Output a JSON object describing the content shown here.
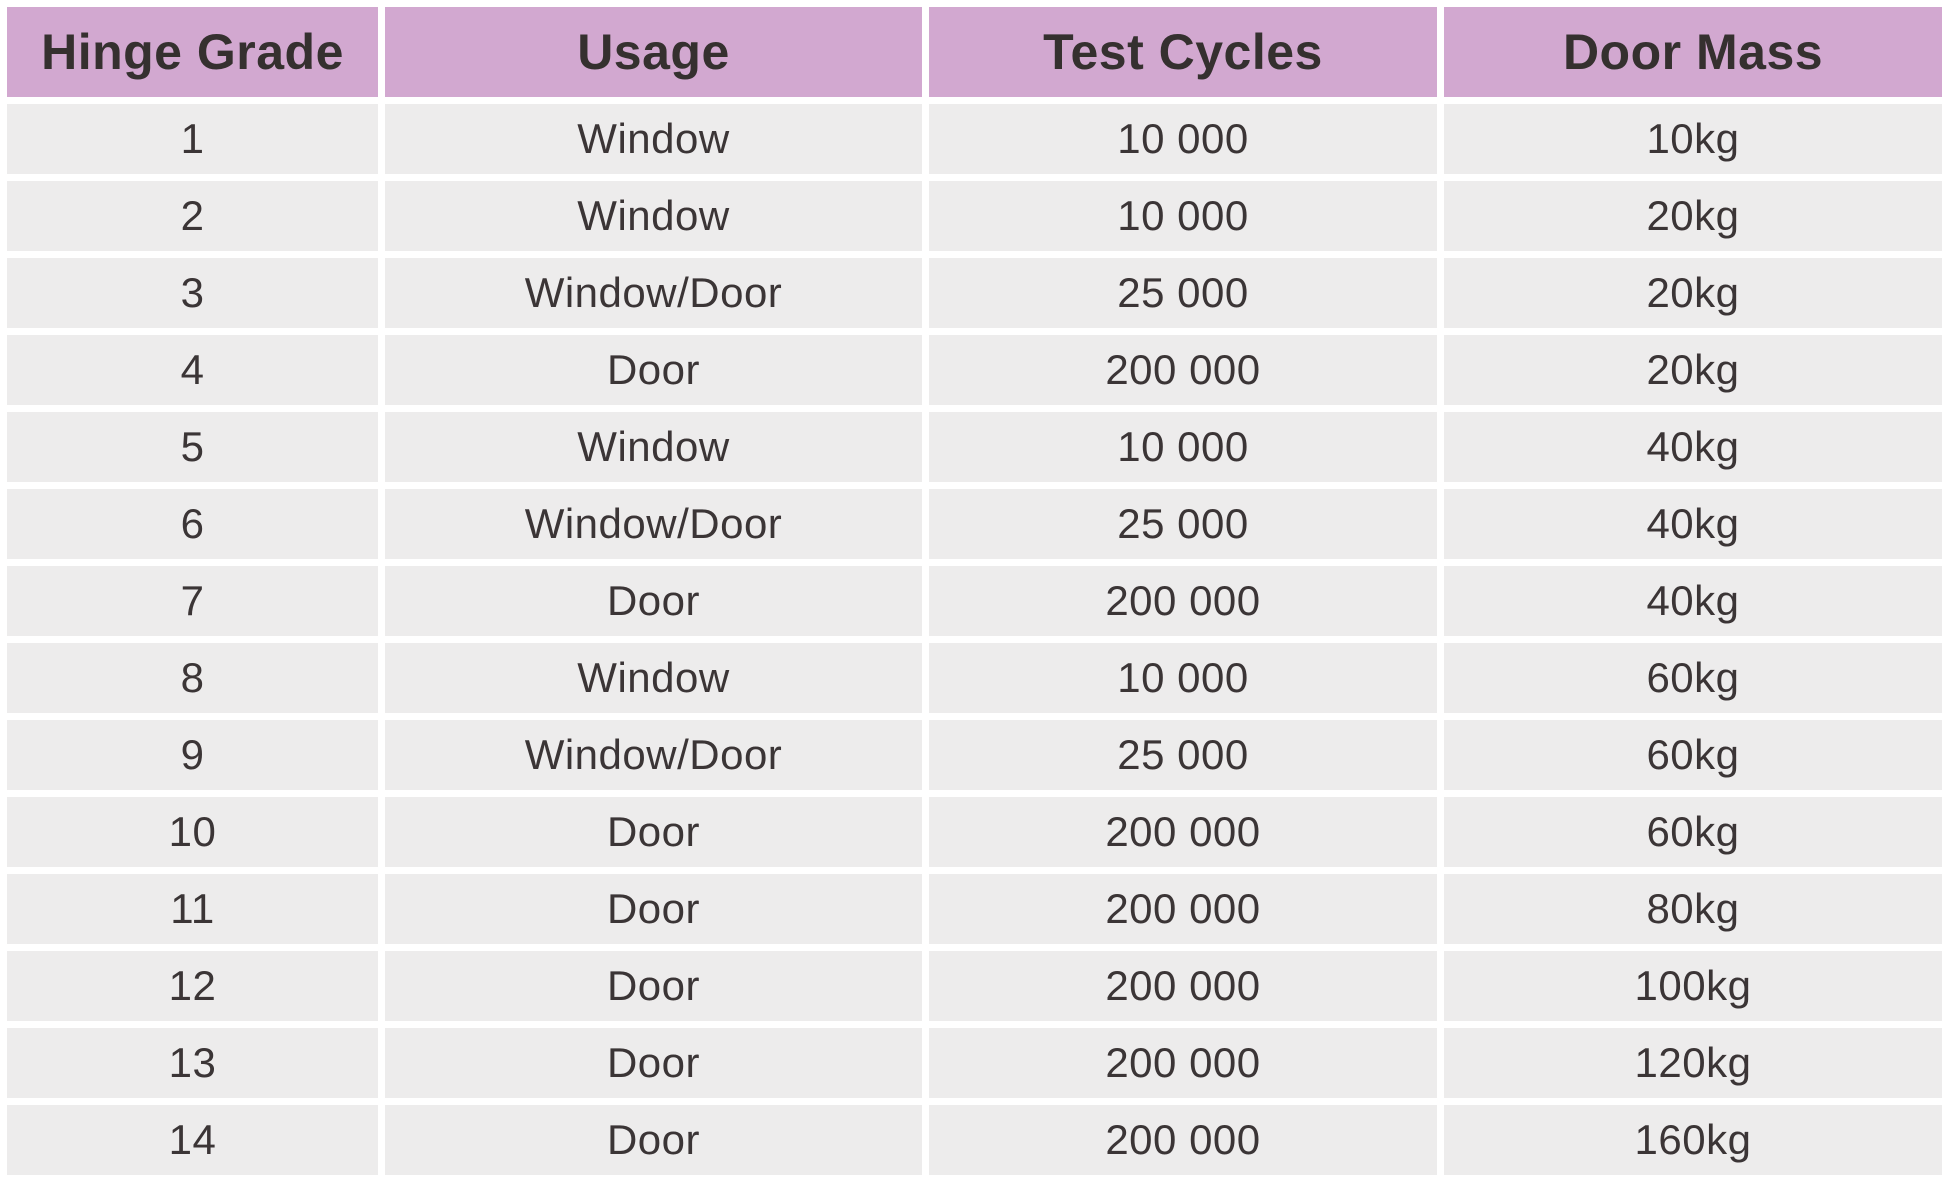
{
  "table": {
    "headers": [
      "Hinge Grade",
      "Usage",
      "Test Cycles",
      "Door Mass"
    ]
  },
  "chart_data": {
    "type": "table",
    "columns": [
      "Hinge Grade",
      "Usage",
      "Test Cycles",
      "Door Mass"
    ],
    "rows": [
      [
        "1",
        "Window",
        "10 000",
        "10kg"
      ],
      [
        "2",
        "Window",
        "10 000",
        "20kg"
      ],
      [
        "3",
        "Window/Door",
        "25 000",
        "20kg"
      ],
      [
        "4",
        "Door",
        "200 000",
        "20kg"
      ],
      [
        "5",
        "Window",
        "10 000",
        "40kg"
      ],
      [
        "6",
        "Window/Door",
        "25 000",
        "40kg"
      ],
      [
        "7",
        "Door",
        "200 000",
        "40kg"
      ],
      [
        "8",
        "Window",
        "10 000",
        "60kg"
      ],
      [
        "9",
        "Window/Door",
        "25 000",
        "60kg"
      ],
      [
        "10",
        "Door",
        "200 000",
        "60kg"
      ],
      [
        "11",
        "Door",
        "200 000",
        "80kg"
      ],
      [
        "12",
        "Door",
        "200 000",
        "100kg"
      ],
      [
        "13",
        "Door",
        "200 000",
        "120kg"
      ],
      [
        "14",
        "Door",
        "200 000",
        "160kg"
      ]
    ]
  },
  "colors": {
    "header_bg": "#d2a8d0",
    "row_bg": "#edecec",
    "grid_line": "#ffffff",
    "header_text": "#35302f",
    "body_text": "#3b3536"
  }
}
